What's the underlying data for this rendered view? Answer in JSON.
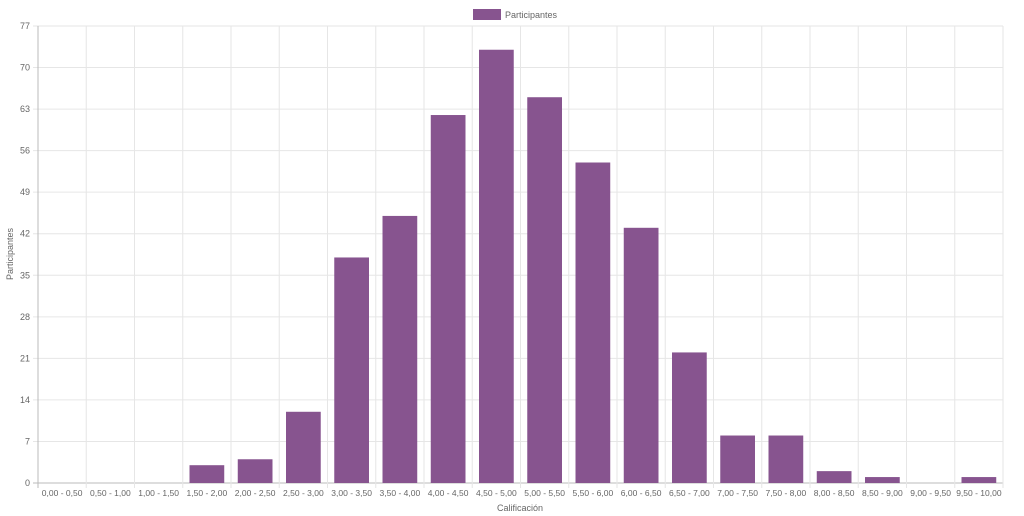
{
  "chart_data": {
    "type": "bar",
    "legend": {
      "position": "top",
      "entries": [
        {
          "label": "Participantes",
          "color": "#87548f"
        }
      ]
    },
    "xlabel": "Calificación",
    "ylabel": "Participantes",
    "ylim": [
      0,
      77
    ],
    "yticks": [
      0,
      7,
      14,
      21,
      28,
      35,
      42,
      49,
      56,
      63,
      70,
      77
    ],
    "grid": true,
    "categories": [
      "0,00 - 0,50",
      "0,50 - 1,00",
      "1,00 - 1,50",
      "1,50 - 2,00",
      "2,00 - 2,50",
      "2,50 - 3,00",
      "3,00 - 3,50",
      "3,50 - 4,00",
      "4,00 - 4,50",
      "4,50 - 5,00",
      "5,00 - 5,50",
      "5,50 - 6,00",
      "6,00 - 6,50",
      "6,50 - 7,00",
      "7,00 - 7,50",
      "7,50 - 8,00",
      "8,00 - 8,50",
      "8,50 - 9,00",
      "9,00 - 9,50",
      "9,50 - 10,00"
    ],
    "series": [
      {
        "name": "Participantes",
        "color": "#87548f",
        "values": [
          0,
          0,
          0,
          3,
          4,
          12,
          38,
          45,
          62,
          73,
          65,
          54,
          43,
          22,
          8,
          8,
          2,
          1,
          0,
          1
        ]
      }
    ]
  }
}
